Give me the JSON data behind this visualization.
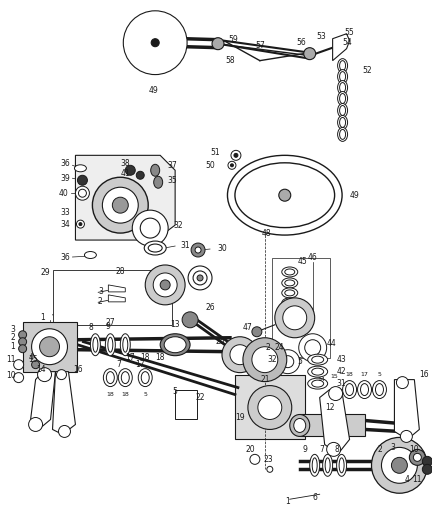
{
  "bg_color": "#ffffff",
  "line_color": "#1a1a1a",
  "fig_width": 4.33,
  "fig_height": 5.16,
  "dpi": 100
}
